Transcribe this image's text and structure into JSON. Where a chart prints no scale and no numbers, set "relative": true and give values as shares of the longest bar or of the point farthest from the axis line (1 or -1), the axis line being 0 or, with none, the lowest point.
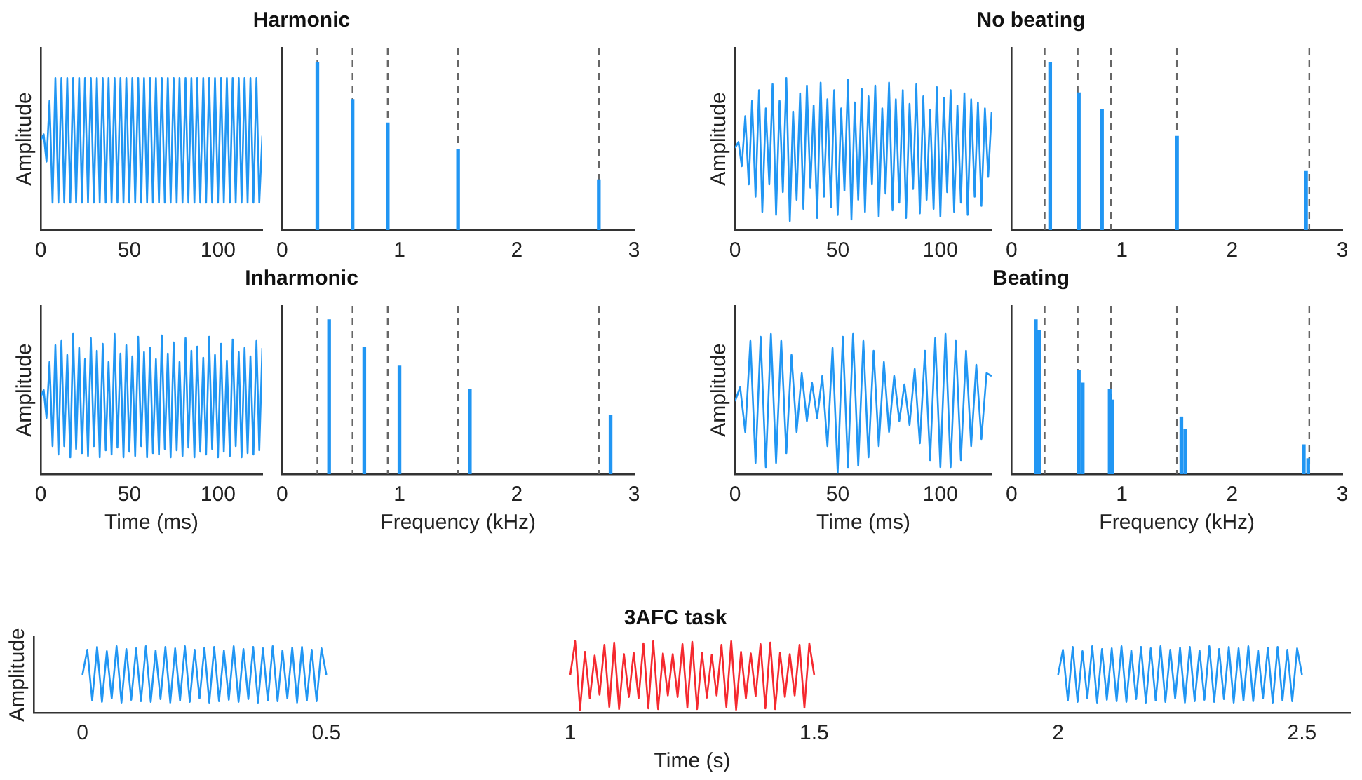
{
  "chart_data": [
    {
      "type": "line",
      "ylabel": "Amplitude",
      "relative": true,
      "color": "#2196f3",
      "xlim": [
        0,
        125
      ],
      "xticks": [
        0,
        50,
        100
      ],
      "x": [
        0,
        1.7,
        3.3,
        5,
        6.7,
        8.3,
        10,
        11.7,
        13.3,
        15,
        16.7,
        18.3,
        20,
        21.7,
        23.3,
        25,
        26.7,
        28.3,
        30,
        31.7,
        33.3,
        35,
        36.7,
        38.3,
        40,
        41.7,
        43.3,
        45,
        46.7,
        48.3,
        50,
        51.7,
        53.3,
        55,
        56.7,
        58.3,
        60,
        61.7,
        63.3,
        65,
        66.7,
        68.3,
        70,
        71.7,
        73.3,
        75,
        76.7,
        78.3,
        80,
        81.7,
        83.3,
        85,
        86.7,
        88.3,
        90,
        91.7,
        93.3,
        95,
        96.7,
        98.3,
        100,
        101.7,
        103.3,
        105,
        106.7,
        108.3,
        110,
        111.7,
        113.3,
        115,
        116.7,
        118.3,
        120,
        121.7,
        123.3,
        125
      ],
      "values": [
        0.59,
        0.63,
        0.45,
        0.85,
        0.18,
        1,
        0.18,
        1,
        0.18,
        1,
        0.18,
        1,
        0.18,
        1,
        0.18,
        1,
        0.18,
        1,
        0.18,
        1,
        0.18,
        1,
        0.18,
        1,
        0.18,
        1,
        0.18,
        1,
        0.18,
        1,
        0.18,
        1,
        0.18,
        1,
        0.18,
        1,
        0.18,
        1,
        0.18,
        1,
        0.18,
        1,
        0.18,
        1,
        0.18,
        1,
        0.18,
        1,
        0.18,
        1,
        0.18,
        1,
        0.18,
        1,
        0.18,
        1,
        0.18,
        1,
        0.18,
        1,
        0.18,
        1,
        0.18,
        1,
        0.18,
        1,
        0.18,
        1,
        0.18,
        1,
        0.18,
        1,
        0.18,
        1,
        0.18,
        0.62
      ]
    },
    {
      "type": "bar",
      "title": "Harmonic",
      "relative": true,
      "color": "#2196f3",
      "xlim": [
        0,
        3
      ],
      "xticks": [
        0,
        1,
        2,
        3
      ],
      "x": [
        0.3,
        0.6,
        0.9,
        1.5,
        2.7
      ],
      "values": [
        1,
        0.78,
        0.64,
        0.48,
        0.3
      ],
      "ref_lines": [
        {
          "axis": "x",
          "value": 0.3,
          "color": "#666666",
          "line_style": "dashed"
        },
        {
          "axis": "x",
          "value": 0.6,
          "color": "#666666",
          "line_style": "dashed"
        },
        {
          "axis": "x",
          "value": 0.9,
          "color": "#666666",
          "line_style": "dashed"
        },
        {
          "axis": "x",
          "value": 1.5,
          "color": "#666666",
          "line_style": "dashed"
        },
        {
          "axis": "x",
          "value": 2.7,
          "color": "#666666",
          "line_style": "dashed"
        }
      ]
    },
    {
      "type": "line",
      "ylabel": "Amplitude",
      "relative": true,
      "color": "#2196f3",
      "xlim": [
        0,
        125
      ],
      "xticks": [
        0,
        50,
        100
      ],
      "x": [
        0,
        1.7,
        3.3,
        5,
        6.7,
        8.3,
        10,
        11.7,
        13.3,
        15,
        16.7,
        18.3,
        20,
        21.7,
        23.3,
        25,
        26.7,
        28.3,
        30,
        31.7,
        33.3,
        35,
        36.7,
        38.3,
        40,
        41.7,
        43.3,
        45,
        46.7,
        48.3,
        50,
        51.7,
        53.3,
        55,
        56.7,
        58.3,
        60,
        61.7,
        63.3,
        65,
        66.7,
        68.3,
        70,
        71.7,
        73.3,
        75,
        76.7,
        78.3,
        80,
        81.7,
        83.3,
        85,
        86.7,
        88.3,
        90,
        91.7,
        93.3,
        95,
        96.7,
        98.3,
        100,
        101.7,
        103.3,
        105,
        106.7,
        108.3,
        110,
        111.7,
        113.3,
        115,
        116.7,
        118.3,
        120,
        121.7,
        123.3,
        125
      ],
      "values": [
        0.54,
        0.58,
        0.42,
        0.75,
        0.3,
        0.85,
        0.22,
        0.92,
        0.12,
        0.8,
        0.3,
        0.96,
        0.1,
        0.85,
        0.25,
        1,
        0.06,
        0.78,
        0.2,
        0.9,
        0.14,
        0.95,
        0.28,
        0.82,
        0.08,
        0.97,
        0.22,
        0.86,
        0.15,
        0.92,
        0.1,
        0.8,
        0.26,
        0.99,
        0.07,
        0.84,
        0.2,
        0.93,
        0.12,
        0.88,
        0.3,
        0.95,
        0.09,
        0.8,
        0.24,
        0.97,
        0.13,
        0.86,
        0.18,
        0.92,
        0.08,
        0.83,
        0.27,
        0.96,
        0.11,
        0.88,
        0.2,
        0.79,
        0.14,
        0.94,
        0.09,
        0.87,
        0.25,
        0.92,
        0.12,
        0.82,
        0.18,
        0.9,
        0.1,
        0.86,
        0.22,
        0.84,
        0.16,
        0.8,
        0.35,
        0.78
      ]
    },
    {
      "type": "bar",
      "title": "No beating",
      "relative": true,
      "color": "#2196f3",
      "xlim": [
        0,
        3
      ],
      "xticks": [
        0,
        1,
        2,
        3
      ],
      "x": [
        0.35,
        0.61,
        0.82,
        1.5,
        2.67
      ],
      "values": [
        1,
        0.82,
        0.72,
        0.56,
        0.35
      ],
      "ref_lines": [
        {
          "axis": "x",
          "value": 0.3,
          "color": "#666666",
          "line_style": "dashed"
        },
        {
          "axis": "x",
          "value": 0.6,
          "color": "#666666",
          "line_style": "dashed"
        },
        {
          "axis": "x",
          "value": 0.9,
          "color": "#666666",
          "line_style": "dashed"
        },
        {
          "axis": "x",
          "value": 1.5,
          "color": "#666666",
          "line_style": "dashed"
        },
        {
          "axis": "x",
          "value": 2.7,
          "color": "#666666",
          "line_style": "dashed"
        }
      ]
    },
    {
      "type": "line",
      "ylabel": "Amplitude",
      "xlabel": "Time (ms)",
      "relative": true,
      "color": "#2196f3",
      "xlim": [
        0,
        125
      ],
      "xticks": [
        0,
        50,
        100
      ],
      "x": [
        0,
        1.7,
        3.3,
        5,
        6.7,
        8.3,
        10,
        11.7,
        13.3,
        15,
        16.7,
        18.3,
        20,
        21.7,
        23.3,
        25,
        26.7,
        28.3,
        30,
        31.7,
        33.3,
        35,
        36.7,
        38.3,
        40,
        41.7,
        43.3,
        45,
        46.7,
        48.3,
        50,
        51.7,
        53.3,
        55,
        56.7,
        58.3,
        60,
        61.7,
        63.3,
        65,
        66.7,
        68.3,
        70,
        71.7,
        73.3,
        75,
        76.7,
        78.3,
        80,
        81.7,
        83.3,
        85,
        86.7,
        88.3,
        90,
        91.7,
        93.3,
        95,
        96.7,
        98.3,
        100,
        101.7,
        103.3,
        105,
        106.7,
        108.3,
        110,
        111.7,
        113.3,
        115,
        116.7,
        118.3,
        120,
        121.7,
        123.3,
        125
      ],
      "values": [
        0.55,
        0.6,
        0.4,
        0.8,
        0.2,
        0.92,
        0.14,
        0.95,
        0.2,
        0.85,
        0.12,
        1,
        0.18,
        0.9,
        0.15,
        0.82,
        0.13,
        0.97,
        0.2,
        0.88,
        0.12,
        0.93,
        0.17,
        0.8,
        0.14,
        1,
        0.19,
        0.86,
        0.12,
        0.92,
        0.16,
        0.84,
        0.13,
        0.98,
        0.2,
        0.87,
        0.12,
        0.9,
        0.15,
        0.82,
        0.14,
        0.99,
        0.18,
        0.86,
        0.12,
        0.94,
        0.17,
        0.8,
        0.13,
        0.97,
        0.19,
        0.88,
        0.12,
        0.91,
        0.16,
        0.83,
        0.14,
        0.98,
        0.18,
        0.85,
        0.12,
        0.93,
        0.16,
        0.81,
        0.13,
        0.96,
        0.2,
        0.87,
        0.12,
        0.9,
        0.15,
        0.84,
        0.14,
        0.95,
        0.17,
        0.9
      ]
    },
    {
      "type": "bar",
      "title": "Inharmonic",
      "relative": true,
      "color": "#2196f3",
      "xlabel": "Frequency (kHz)",
      "xlim": [
        0,
        3
      ],
      "xticks": [
        0,
        1,
        2,
        3
      ],
      "x": [
        0.4,
        0.7,
        1.0,
        1.6,
        2.8
      ],
      "values": [
        1,
        0.82,
        0.7,
        0.55,
        0.38
      ],
      "ref_lines": [
        {
          "axis": "x",
          "value": 0.3,
          "color": "#666666",
          "line_style": "dashed"
        },
        {
          "axis": "x",
          "value": 0.6,
          "color": "#666666",
          "line_style": "dashed"
        },
        {
          "axis": "x",
          "value": 0.9,
          "color": "#666666",
          "line_style": "dashed"
        },
        {
          "axis": "x",
          "value": 1.5,
          "color": "#666666",
          "line_style": "dashed"
        },
        {
          "axis": "x",
          "value": 2.7,
          "color": "#666666",
          "line_style": "dashed"
        }
      ]
    },
    {
      "type": "line",
      "ylabel": "Amplitude",
      "xlabel": "Time (ms)",
      "relative": true,
      "color": "#2196f3",
      "xlim": [
        0,
        125
      ],
      "xticks": [
        0,
        50,
        100
      ],
      "x": [
        0,
        2.5,
        5,
        7.5,
        10,
        12.5,
        15,
        17.5,
        20,
        22.5,
        25,
        27.5,
        30,
        32.5,
        35,
        37.5,
        40,
        42.5,
        45,
        47.5,
        50,
        52.5,
        55,
        57.5,
        60,
        62.5,
        65,
        67.5,
        70,
        72.5,
        75,
        77.5,
        80,
        82.5,
        85,
        87.5,
        90,
        92.5,
        95,
        97.5,
        100,
        102.5,
        105,
        107.5,
        110,
        112.5,
        115,
        117.5,
        120,
        122.5,
        125
      ],
      "values": [
        0.52,
        0.62,
        0.3,
        0.95,
        0.08,
        0.98,
        0.05,
        1,
        0.08,
        0.95,
        0.15,
        0.85,
        0.3,
        0.72,
        0.38,
        0.65,
        0.4,
        0.7,
        0.2,
        0.9,
        0.01,
        0.98,
        0.05,
        1,
        0.06,
        0.95,
        0.12,
        0.88,
        0.2,
        0.8,
        0.3,
        0.7,
        0.38,
        0.64,
        0.35,
        0.75,
        0.22,
        0.88,
        0.1,
        0.97,
        0.05,
        1,
        0.05,
        0.95,
        0.1,
        0.88,
        0.2,
        0.78,
        0.25,
        0.72,
        0.7
      ]
    },
    {
      "type": "bar",
      "title": "Beating",
      "relative": true,
      "color": "#2196f3",
      "xlabel": "Frequency (kHz)",
      "xlim": [
        0,
        3
      ],
      "xticks": [
        0,
        1,
        2,
        3
      ],
      "x": [
        0.22,
        0.25,
        0.61,
        0.645,
        0.89,
        0.91,
        1.54,
        1.575,
        2.65,
        2.69
      ],
      "values": [
        1,
        0.93,
        0.67,
        0.59,
        0.55,
        0.48,
        0.37,
        0.29,
        0.19,
        0.1
      ],
      "ref_lines": [
        {
          "axis": "x",
          "value": 0.3,
          "color": "#666666",
          "line_style": "dashed"
        },
        {
          "axis": "x",
          "value": 0.6,
          "color": "#666666",
          "line_style": "dashed"
        },
        {
          "axis": "x",
          "value": 0.9,
          "color": "#666666",
          "line_style": "dashed"
        },
        {
          "axis": "x",
          "value": 1.5,
          "color": "#666666",
          "line_style": "dashed"
        },
        {
          "axis": "x",
          "value": 2.7,
          "color": "#666666",
          "line_style": "dashed"
        }
      ]
    },
    {
      "type": "line",
      "title": "3AFC task",
      "ylabel": "Amplitude",
      "xlabel": "Time (s)",
      "relative": true,
      "xlim": [
        -0.1,
        2.6
      ],
      "xticks": [
        0,
        0.5,
        1,
        1.5,
        2,
        2.5
      ],
      "series": [
        {
          "color": "#2196f3",
          "x": [
            0,
            0.01,
            0.02,
            0.03,
            0.04,
            0.05,
            0.06,
            0.07,
            0.08,
            0.09,
            0.1,
            0.11,
            0.12,
            0.13,
            0.14,
            0.15,
            0.16,
            0.17,
            0.18,
            0.19,
            0.2,
            0.21,
            0.22,
            0.23,
            0.24,
            0.25,
            0.26,
            0.27,
            0.28,
            0.29,
            0.3,
            0.31,
            0.32,
            0.33,
            0.34,
            0.35,
            0.36,
            0.37,
            0.38,
            0.39,
            0.4,
            0.41,
            0.42,
            0.43,
            0.44,
            0.45,
            0.46,
            0.47,
            0.48,
            0.49,
            0.5
          ],
          "values": [
            0.53,
            0.88,
            0.17,
            0.92,
            0.15,
            0.86,
            0.2,
            0.93,
            0.14,
            0.89,
            0.18,
            0.9,
            0.16,
            0.93,
            0.15,
            0.87,
            0.19,
            0.92,
            0.14,
            0.9,
            0.17,
            0.93,
            0.15,
            0.88,
            0.2,
            0.91,
            0.14,
            0.92,
            0.16,
            0.87,
            0.18,
            0.93,
            0.15,
            0.89,
            0.19,
            0.92,
            0.14,
            0.9,
            0.17,
            0.93,
            0.16,
            0.87,
            0.2,
            0.91,
            0.14,
            0.92,
            0.17,
            0.88,
            0.16,
            0.9,
            0.53
          ]
        },
        {
          "color": "#f5292f",
          "x": [
            1,
            1.01,
            1.02,
            1.03,
            1.04,
            1.05,
            1.06,
            1.07,
            1.08,
            1.09,
            1.1,
            1.11,
            1.12,
            1.13,
            1.14,
            1.15,
            1.16,
            1.17,
            1.18,
            1.19,
            1.2,
            1.21,
            1.22,
            1.23,
            1.24,
            1.25,
            1.26,
            1.27,
            1.28,
            1.29,
            1.3,
            1.31,
            1.32,
            1.33,
            1.34,
            1.35,
            1.36,
            1.37,
            1.38,
            1.39,
            1.4,
            1.41,
            1.42,
            1.43,
            1.44,
            1.45,
            1.46,
            1.47,
            1.48,
            1.49,
            1.5
          ],
          "values": [
            0.53,
            1,
            0.04,
            0.85,
            0.2,
            0.8,
            0.25,
            0.95,
            0.08,
            0.98,
            0.05,
            0.82,
            0.22,
            0.84,
            0.2,
            0.97,
            0.06,
            1,
            0.05,
            0.83,
            0.24,
            0.82,
            0.22,
            0.96,
            0.07,
            0.99,
            0.05,
            0.84,
            0.21,
            0.81,
            0.24,
            0.95,
            0.08,
            1,
            0.04,
            0.85,
            0.2,
            0.83,
            0.23,
            0.96,
            0.06,
            0.98,
            0.05,
            0.84,
            0.22,
            0.82,
            0.24,
            0.95,
            0.07,
            0.97,
            0.53
          ]
        },
        {
          "color": "#2196f3",
          "x": [
            2,
            2.01,
            2.02,
            2.03,
            2.04,
            2.05,
            2.06,
            2.07,
            2.08,
            2.09,
            2.1,
            2.11,
            2.12,
            2.13,
            2.14,
            2.15,
            2.16,
            2.17,
            2.18,
            2.19,
            2.2,
            2.21,
            2.22,
            2.23,
            2.24,
            2.25,
            2.26,
            2.27,
            2.28,
            2.29,
            2.3,
            2.31,
            2.32,
            2.33,
            2.34,
            2.35,
            2.36,
            2.37,
            2.38,
            2.39,
            2.4,
            2.41,
            2.42,
            2.43,
            2.44,
            2.45,
            2.46,
            2.47,
            2.48,
            2.49,
            2.5
          ],
          "values": [
            0.53,
            0.88,
            0.17,
            0.92,
            0.15,
            0.86,
            0.2,
            0.93,
            0.14,
            0.89,
            0.18,
            0.9,
            0.16,
            0.93,
            0.15,
            0.87,
            0.19,
            0.92,
            0.14,
            0.9,
            0.17,
            0.93,
            0.15,
            0.88,
            0.2,
            0.91,
            0.14,
            0.92,
            0.16,
            0.87,
            0.18,
            0.93,
            0.15,
            0.89,
            0.19,
            0.92,
            0.14,
            0.9,
            0.17,
            0.93,
            0.16,
            0.87,
            0.2,
            0.91,
            0.14,
            0.92,
            0.17,
            0.88,
            0.16,
            0.9,
            0.53
          ]
        }
      ]
    }
  ]
}
